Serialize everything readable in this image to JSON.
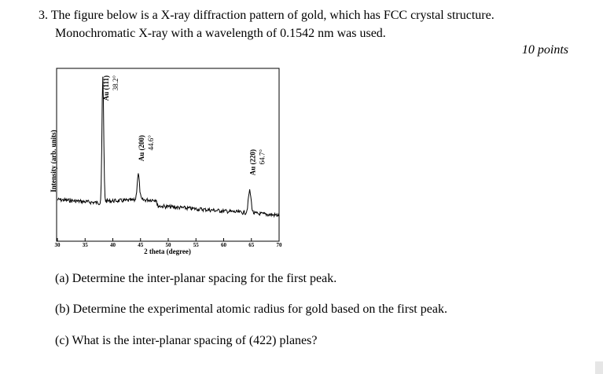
{
  "question": {
    "line1": "3. The figure below is a X-ray diffraction pattern of gold, which has FCC crystal structure.",
    "line2": "Monochromatic X-ray with a wavelength of 0.1542 nm was used.",
    "points": "10 points"
  },
  "subquestions": {
    "a": "(a) Determine the inter-planar spacing for the first peak.",
    "b": "(b) Determine the experimental atomic radius for gold based on the first peak.",
    "c": "(c) What is the inter-planar spacing of (422) planes?"
  },
  "chart_data": {
    "type": "line",
    "xlabel": "2 theta (degree)",
    "ylabel": "Intensity (arb. units)",
    "xlim": [
      30,
      70
    ],
    "x_ticks": [
      "30",
      "35",
      "40",
      "45",
      "50",
      "55",
      "60",
      "65",
      "70"
    ],
    "peaks": [
      {
        "label": "Au (111)",
        "angle": "38.2°",
        "x": 38.2
      },
      {
        "label": "Au (200)",
        "angle": "44.6°",
        "x": 44.6
      },
      {
        "label": "Au (220)",
        "angle": "64.7°",
        "x": 64.7
      }
    ]
  }
}
